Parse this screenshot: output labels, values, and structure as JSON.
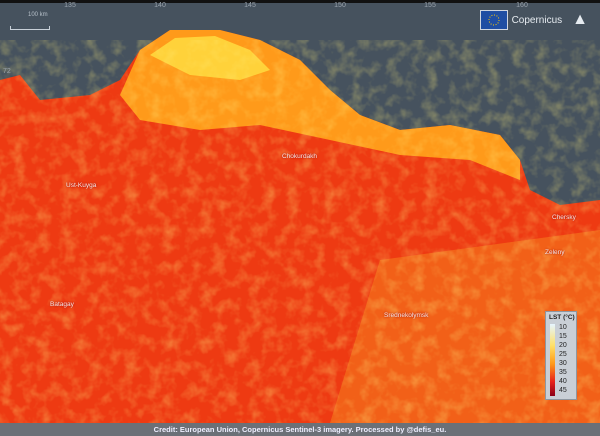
{
  "map": {
    "lon_ticks_top": [
      "135",
      "140",
      "145",
      "150",
      "155",
      "160"
    ],
    "lat_ticks": [
      "72"
    ],
    "scale_label": "100 km",
    "logo": "Copernicus",
    "north_arrow": "north-arrow-icon",
    "sea_color": "#46525e",
    "cities": [
      "Ust-Kuyga",
      "Chokurdakh",
      "Batagay",
      "Srednekolymsk",
      "Chersky",
      "Zeleny"
    ]
  },
  "legend": {
    "title": "LST (°C)",
    "values": [
      "10",
      "15",
      "20",
      "25",
      "30",
      "35",
      "40",
      "45"
    ],
    "colors": [
      "#e6f6ff",
      "#ffe066",
      "#ff9a1a",
      "#e8221a",
      "#8a0018"
    ]
  },
  "credit": "Credit: European Union, Copernicus Sentinel-3 imagery. Processed by @defis_eu."
}
